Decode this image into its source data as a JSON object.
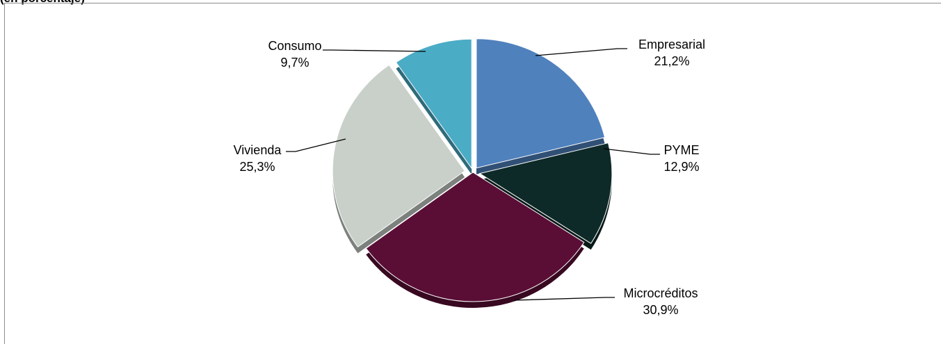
{
  "header_fragment": "(en porcentaje)",
  "chart_data": {
    "type": "pie",
    "categories": [
      "Empresarial",
      "PYME",
      "Microcréditos",
      "Vivienda",
      "Consumo"
    ],
    "values": [
      21.2,
      12.9,
      30.9,
      25.3,
      9.7
    ],
    "value_labels": [
      "21,2%",
      "12,9%",
      "30,9%",
      "25,3%",
      "9,7%"
    ],
    "colors": [
      "#4F81BD",
      "#0E2A28",
      "#5A0E36",
      "#C9D0CA",
      "#4BACC6"
    ],
    "legend": "none",
    "data_labels": "outside with leader lines"
  }
}
